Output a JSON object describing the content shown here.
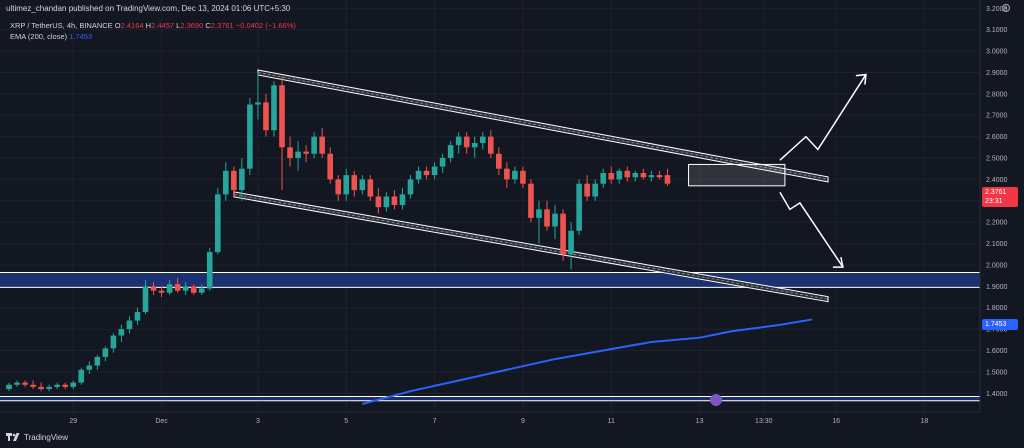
{
  "header": {
    "publisher_line": "ultimez_chandan published on TradingView.com, Dec 13, 2024 01:06 UTC+5:30",
    "symbol": "XRP / TetherUS, 4h, BINANCE",
    "ohlc": {
      "o_label": "O",
      "o": "2.4164",
      "h_label": "H",
      "h": "2.4457",
      "l_label": "L",
      "l": "2.3690",
      "c_label": "C",
      "c": "2.3761",
      "change": "−0.0402 (−1.66%)"
    },
    "ema_label": "EMA (200, close)",
    "ema_value": "1.7453"
  },
  "price_tag": {
    "price": "2.3761",
    "timer": "23:31"
  },
  "ema_tag": "1.7453",
  "footer": {
    "brand": "TradingView"
  },
  "colors": {
    "up": "#26a69a",
    "down": "#ef5350",
    "ema": "#2962ff",
    "zone": "#1e3a8a",
    "bg": "#131722"
  },
  "chart_data": {
    "type": "candlestick",
    "symbol": "XRP / TetherUS, 4h, BINANCE",
    "y_ticks": [
      "3.2000",
      "3.1000",
      "3.0000",
      "2.9000",
      "2.8000",
      "2.7000",
      "2.6000",
      "2.5000",
      "2.4000",
      "2.3000",
      "2.2000",
      "2.1000",
      "2.0000",
      "1.9000",
      "1.8000",
      "1.7000",
      "1.6000",
      "1.5000",
      "1.4000"
    ],
    "ylim": [
      1.35,
      3.22
    ],
    "x_ticks": [
      {
        "label": "29",
        "i": 8
      },
      {
        "label": "Dec",
        "i": 19
      },
      {
        "label": "3",
        "i": 31
      },
      {
        "label": "5",
        "i": 42
      },
      {
        "label": "7",
        "i": 53
      },
      {
        "label": "9",
        "i": 64
      },
      {
        "label": "11",
        "i": 75
      },
      {
        "label": "13",
        "i": 86
      },
      {
        "label": "13:30",
        "i": 94
      },
      {
        "label": "16",
        "i": 103
      },
      {
        "label": "18",
        "i": 114
      }
    ],
    "candles": [
      [
        1.42,
        1.45,
        1.41,
        1.44
      ],
      [
        1.44,
        1.46,
        1.43,
        1.45
      ],
      [
        1.45,
        1.46,
        1.43,
        1.44
      ],
      [
        1.44,
        1.46,
        1.42,
        1.43
      ],
      [
        1.43,
        1.45,
        1.41,
        1.42
      ],
      [
        1.42,
        1.44,
        1.41,
        1.43
      ],
      [
        1.43,
        1.45,
        1.42,
        1.44
      ],
      [
        1.44,
        1.45,
        1.42,
        1.43
      ],
      [
        1.43,
        1.46,
        1.42,
        1.45
      ],
      [
        1.45,
        1.52,
        1.44,
        1.51
      ],
      [
        1.51,
        1.55,
        1.49,
        1.53
      ],
      [
        1.53,
        1.58,
        1.51,
        1.57
      ],
      [
        1.57,
        1.62,
        1.55,
        1.61
      ],
      [
        1.61,
        1.68,
        1.59,
        1.67
      ],
      [
        1.67,
        1.72,
        1.64,
        1.7
      ],
      [
        1.7,
        1.76,
        1.68,
        1.74
      ],
      [
        1.74,
        1.8,
        1.72,
        1.78
      ],
      [
        1.78,
        1.93,
        1.77,
        1.9
      ],
      [
        1.9,
        1.92,
        1.86,
        1.88
      ],
      [
        1.88,
        1.9,
        1.85,
        1.87
      ],
      [
        1.87,
        1.93,
        1.86,
        1.91
      ],
      [
        1.91,
        1.94,
        1.87,
        1.88
      ],
      [
        1.88,
        1.92,
        1.86,
        1.9
      ],
      [
        1.9,
        1.91,
        1.86,
        1.87
      ],
      [
        1.87,
        1.91,
        1.86,
        1.89
      ],
      [
        1.89,
        2.08,
        1.88,
        2.06
      ],
      [
        2.06,
        2.36,
        2.05,
        2.33
      ],
      [
        2.33,
        2.48,
        2.3,
        2.44
      ],
      [
        2.44,
        2.46,
        2.32,
        2.35
      ],
      [
        2.35,
        2.5,
        2.3,
        2.45
      ],
      [
        2.45,
        2.78,
        2.42,
        2.75
      ],
      [
        2.75,
        2.9,
        2.68,
        2.76
      ],
      [
        2.76,
        2.8,
        2.6,
        2.63
      ],
      [
        2.63,
        2.86,
        2.6,
        2.84
      ],
      [
        2.84,
        2.88,
        2.35,
        2.55
      ],
      [
        2.55,
        2.6,
        2.46,
        2.5
      ],
      [
        2.5,
        2.58,
        2.44,
        2.53
      ],
      [
        2.53,
        2.56,
        2.48,
        2.52
      ],
      [
        2.52,
        2.62,
        2.5,
        2.6
      ],
      [
        2.6,
        2.64,
        2.5,
        2.52
      ],
      [
        2.52,
        2.55,
        2.38,
        2.4
      ],
      [
        2.4,
        2.42,
        2.3,
        2.33
      ],
      [
        2.33,
        2.45,
        2.3,
        2.42
      ],
      [
        2.42,
        2.44,
        2.32,
        2.35
      ],
      [
        2.35,
        2.42,
        2.33,
        2.4
      ],
      [
        2.4,
        2.42,
        2.3,
        2.32
      ],
      [
        2.32,
        2.36,
        2.24,
        2.27
      ],
      [
        2.27,
        2.34,
        2.25,
        2.32
      ],
      [
        2.32,
        2.35,
        2.26,
        2.28
      ],
      [
        2.28,
        2.36,
        2.26,
        2.33
      ],
      [
        2.33,
        2.42,
        2.31,
        2.4
      ],
      [
        2.4,
        2.46,
        2.38,
        2.44
      ],
      [
        2.44,
        2.46,
        2.4,
        2.42
      ],
      [
        2.42,
        2.48,
        2.4,
        2.46
      ],
      [
        2.46,
        2.52,
        2.43,
        2.5
      ],
      [
        2.5,
        2.58,
        2.48,
        2.56
      ],
      [
        2.56,
        2.62,
        2.52,
        2.6
      ],
      [
        2.6,
        2.62,
        2.52,
        2.55
      ],
      [
        2.55,
        2.6,
        2.5,
        2.57
      ],
      [
        2.57,
        2.62,
        2.54,
        2.6
      ],
      [
        2.6,
        2.63,
        2.5,
        2.52
      ],
      [
        2.52,
        2.55,
        2.42,
        2.45
      ],
      [
        2.45,
        2.48,
        2.36,
        2.4
      ],
      [
        2.4,
        2.46,
        2.38,
        2.44
      ],
      [
        2.44,
        2.46,
        2.36,
        2.38
      ],
      [
        2.38,
        2.4,
        2.2,
        2.22
      ],
      [
        2.22,
        2.3,
        2.1,
        2.26
      ],
      [
        2.26,
        2.3,
        2.16,
        2.18
      ],
      [
        2.18,
        2.28,
        2.12,
        2.24
      ],
      [
        2.24,
        2.26,
        2.02,
        2.05
      ],
      [
        2.05,
        2.2,
        1.98,
        2.16
      ],
      [
        2.16,
        2.4,
        2.14,
        2.38
      ],
      [
        2.38,
        2.42,
        2.3,
        2.32
      ],
      [
        2.32,
        2.4,
        2.3,
        2.38
      ],
      [
        2.38,
        2.45,
        2.36,
        2.43
      ],
      [
        2.43,
        2.46,
        2.38,
        2.4
      ],
      [
        2.4,
        2.45,
        2.38,
        2.44
      ],
      [
        2.44,
        2.46,
        2.39,
        2.41
      ],
      [
        2.41,
        2.44,
        2.39,
        2.43
      ],
      [
        2.43,
        2.45,
        2.4,
        2.41
      ],
      [
        2.41,
        2.44,
        2.39,
        2.42
      ],
      [
        2.42,
        2.44,
        2.4,
        2.41
      ],
      [
        2.42,
        2.45,
        2.37,
        2.38
      ]
    ],
    "ema_200": [
      [
        44,
        1.35
      ],
      [
        50,
        1.41
      ],
      [
        56,
        1.46
      ],
      [
        62,
        1.51
      ],
      [
        68,
        1.56
      ],
      [
        74,
        1.6
      ],
      [
        80,
        1.64
      ],
      [
        86,
        1.66
      ],
      [
        90,
        1.69
      ],
      [
        96,
        1.72
      ],
      [
        100,
        1.7453
      ]
    ],
    "annotations": {
      "channel_upper": [
        [
          31,
          2.9
        ],
        [
          102,
          2.4
        ]
      ],
      "channel_lower": [
        [
          28,
          2.33
        ],
        [
          102,
          1.84
        ]
      ],
      "support_zone": [
        1.895,
        1.965
      ],
      "bottom_zone": [
        1.365,
        1.385
      ],
      "consolidation_box": {
        "i0": 85,
        "i1": 97,
        "lo": 2.37,
        "hi": 2.47
      }
    }
  }
}
